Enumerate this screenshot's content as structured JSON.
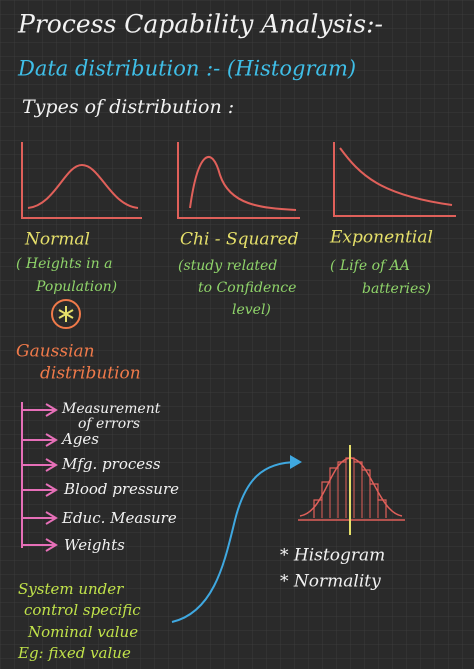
{
  "title": "Process Capability Analysis:-",
  "subtitle": "Data distribution :- (Histogram)",
  "heading": "Types of distribution :",
  "distributions": [
    {
      "name": "Normal",
      "note": [
        "( Heights in a",
        "Population)"
      ]
    },
    {
      "name": "Chi - Squared",
      "note": [
        "(study related",
        "to Confidence",
        "level)"
      ]
    },
    {
      "name": "Exponential",
      "note": [
        "( Life of AA",
        "batteries)"
      ]
    }
  ],
  "gaussian": [
    "Gaussian",
    "distribution"
  ],
  "examples": [
    [
      "Measurement",
      "of errors"
    ],
    [
      "Ages"
    ],
    [
      "Mfg. process"
    ],
    [
      "Blood pressure"
    ],
    [
      "Educ. Measure"
    ],
    [
      "Weights"
    ]
  ],
  "conclusion": [
    "System under",
    "control specific",
    "Nominal value",
    "Eg: fixed value"
  ],
  "histogram_labels": [
    "* Histogram",
    "* Normality"
  ]
}
